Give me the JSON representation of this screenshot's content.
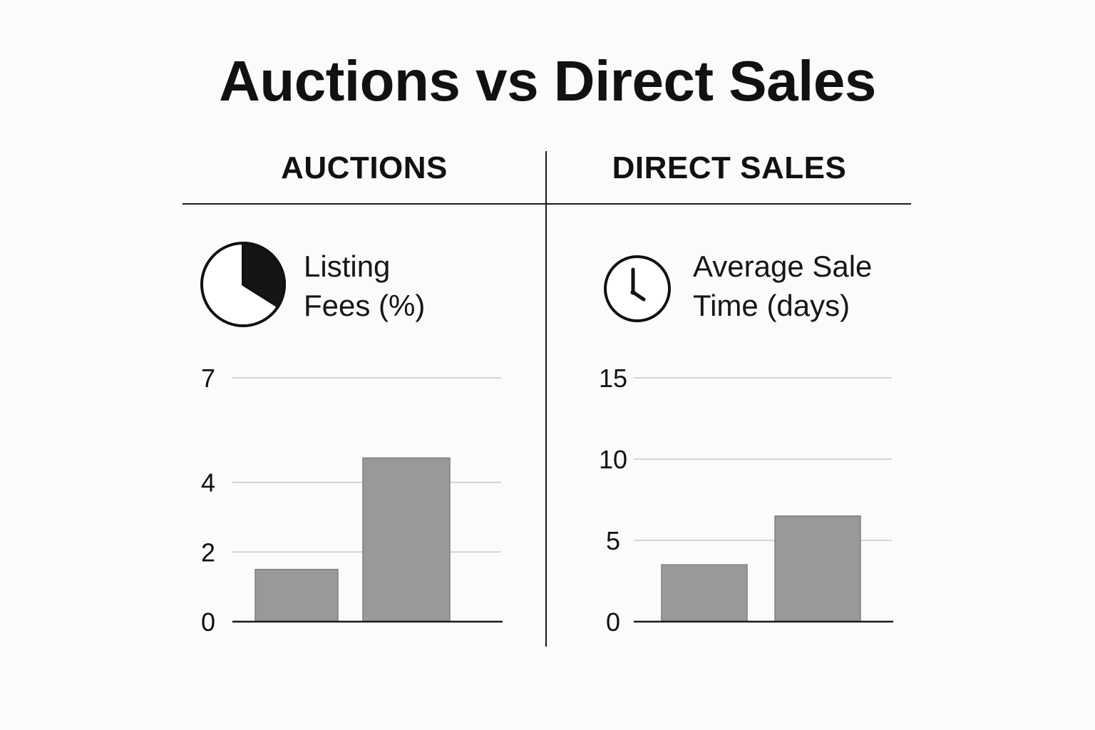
{
  "title": "Auctions vs Direct Sales",
  "columns": {
    "left": {
      "heading": "AUCTIONS",
      "icon": "pie-chart-icon",
      "label_line1": "Listing",
      "label_line2": "Fees (%)"
    },
    "right": {
      "heading": "DIRECT SALES",
      "icon": "clock-icon",
      "label_line1": "Average Sale",
      "label_line2": "Time (days)"
    }
  },
  "colors": {
    "background": "#fbfbf9",
    "bar_fill": "#999999",
    "bar_stroke": "#7f7f7f",
    "gridline": "#c8c8c8",
    "baseline": "#1a1a1a",
    "text": "#111111"
  },
  "chart_data": [
    {
      "type": "bar",
      "title": "",
      "xlabel": "",
      "ylabel": "",
      "categories": [
        "",
        ""
      ],
      "values": [
        1.5,
        4.7
      ],
      "ticks": [
        0,
        2,
        4,
        7
      ],
      "ylim": [
        0,
        7
      ],
      "grid": true
    },
    {
      "type": "bar",
      "title": "",
      "xlabel": "",
      "ylabel": "",
      "categories": [
        "",
        ""
      ],
      "values": [
        3.5,
        6.5
      ],
      "ticks": [
        0,
        5,
        10,
        15
      ],
      "ylim": [
        0,
        15
      ],
      "grid": true
    }
  ]
}
